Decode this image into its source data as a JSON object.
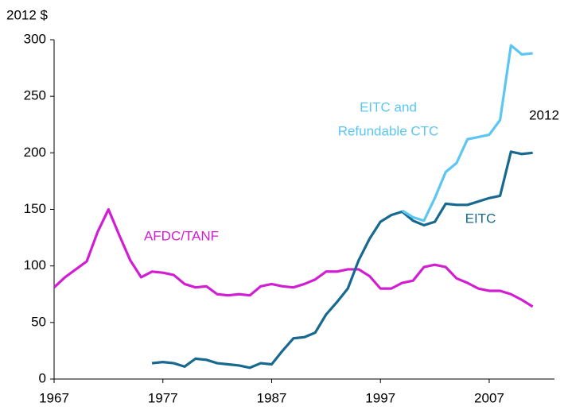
{
  "chart_data": {
    "type": "line",
    "y_label": "2012 $",
    "x": [
      1967,
      1968,
      1969,
      1970,
      1971,
      1972,
      1973,
      1974,
      1975,
      1976,
      1977,
      1978,
      1979,
      1980,
      1981,
      1982,
      1983,
      1984,
      1985,
      1986,
      1987,
      1988,
      1989,
      1990,
      1991,
      1992,
      1993,
      1994,
      1995,
      1996,
      1997,
      1998,
      1999,
      2000,
      2001,
      2002,
      2003,
      2004,
      2005,
      2006,
      2007,
      2008,
      2009,
      2010,
      2011
    ],
    "series": [
      {
        "name": "AFDC/TANF",
        "color": "#d21ed2",
        "values": [
          81,
          90,
          97,
          104,
          130,
          150,
          127,
          105,
          90,
          95,
          94,
          92,
          84,
          81,
          82,
          75,
          74,
          75,
          74,
          82,
          84,
          82,
          81,
          84,
          88,
          95,
          95,
          97,
          97,
          91,
          80,
          80,
          85,
          87,
          99,
          101,
          99,
          89,
          85,
          80,
          78,
          78,
          75,
          70,
          64
        ]
      },
      {
        "name": "EITC",
        "color": "#17698f",
        "values": [
          null,
          null,
          null,
          null,
          null,
          null,
          null,
          null,
          null,
          14,
          15,
          14,
          11,
          18,
          17,
          14,
          13,
          12,
          10,
          14,
          13,
          25,
          36,
          37,
          41,
          57,
          68,
          80,
          105,
          124,
          139,
          145,
          148,
          140,
          136,
          139,
          155,
          154,
          154,
          157,
          160,
          162,
          201,
          199,
          200
        ]
      },
      {
        "name": "EITC and Refundable CTC",
        "color": "#5cc6f2",
        "values": [
          null,
          null,
          null,
          null,
          null,
          null,
          null,
          null,
          null,
          null,
          null,
          null,
          null,
          null,
          null,
          null,
          null,
          null,
          null,
          null,
          null,
          null,
          null,
          null,
          null,
          null,
          null,
          null,
          null,
          null,
          null,
          null,
          149,
          143,
          140,
          160,
          183,
          191,
          212,
          214,
          216,
          229,
          295,
          287,
          288
        ]
      }
    ],
    "annotations": [
      "EITC and",
      "Refundable CTC",
      "2012",
      "EITC",
      "AFDC/TANF"
    ],
    "xlim": [
      1967,
      2013
    ],
    "xticks": [
      1967,
      1977,
      1987,
      1997,
      2007
    ],
    "ylim": [
      0,
      300
    ],
    "yticks": [
      0,
      50,
      100,
      150,
      200,
      250,
      300
    ],
    "grid": false
  }
}
